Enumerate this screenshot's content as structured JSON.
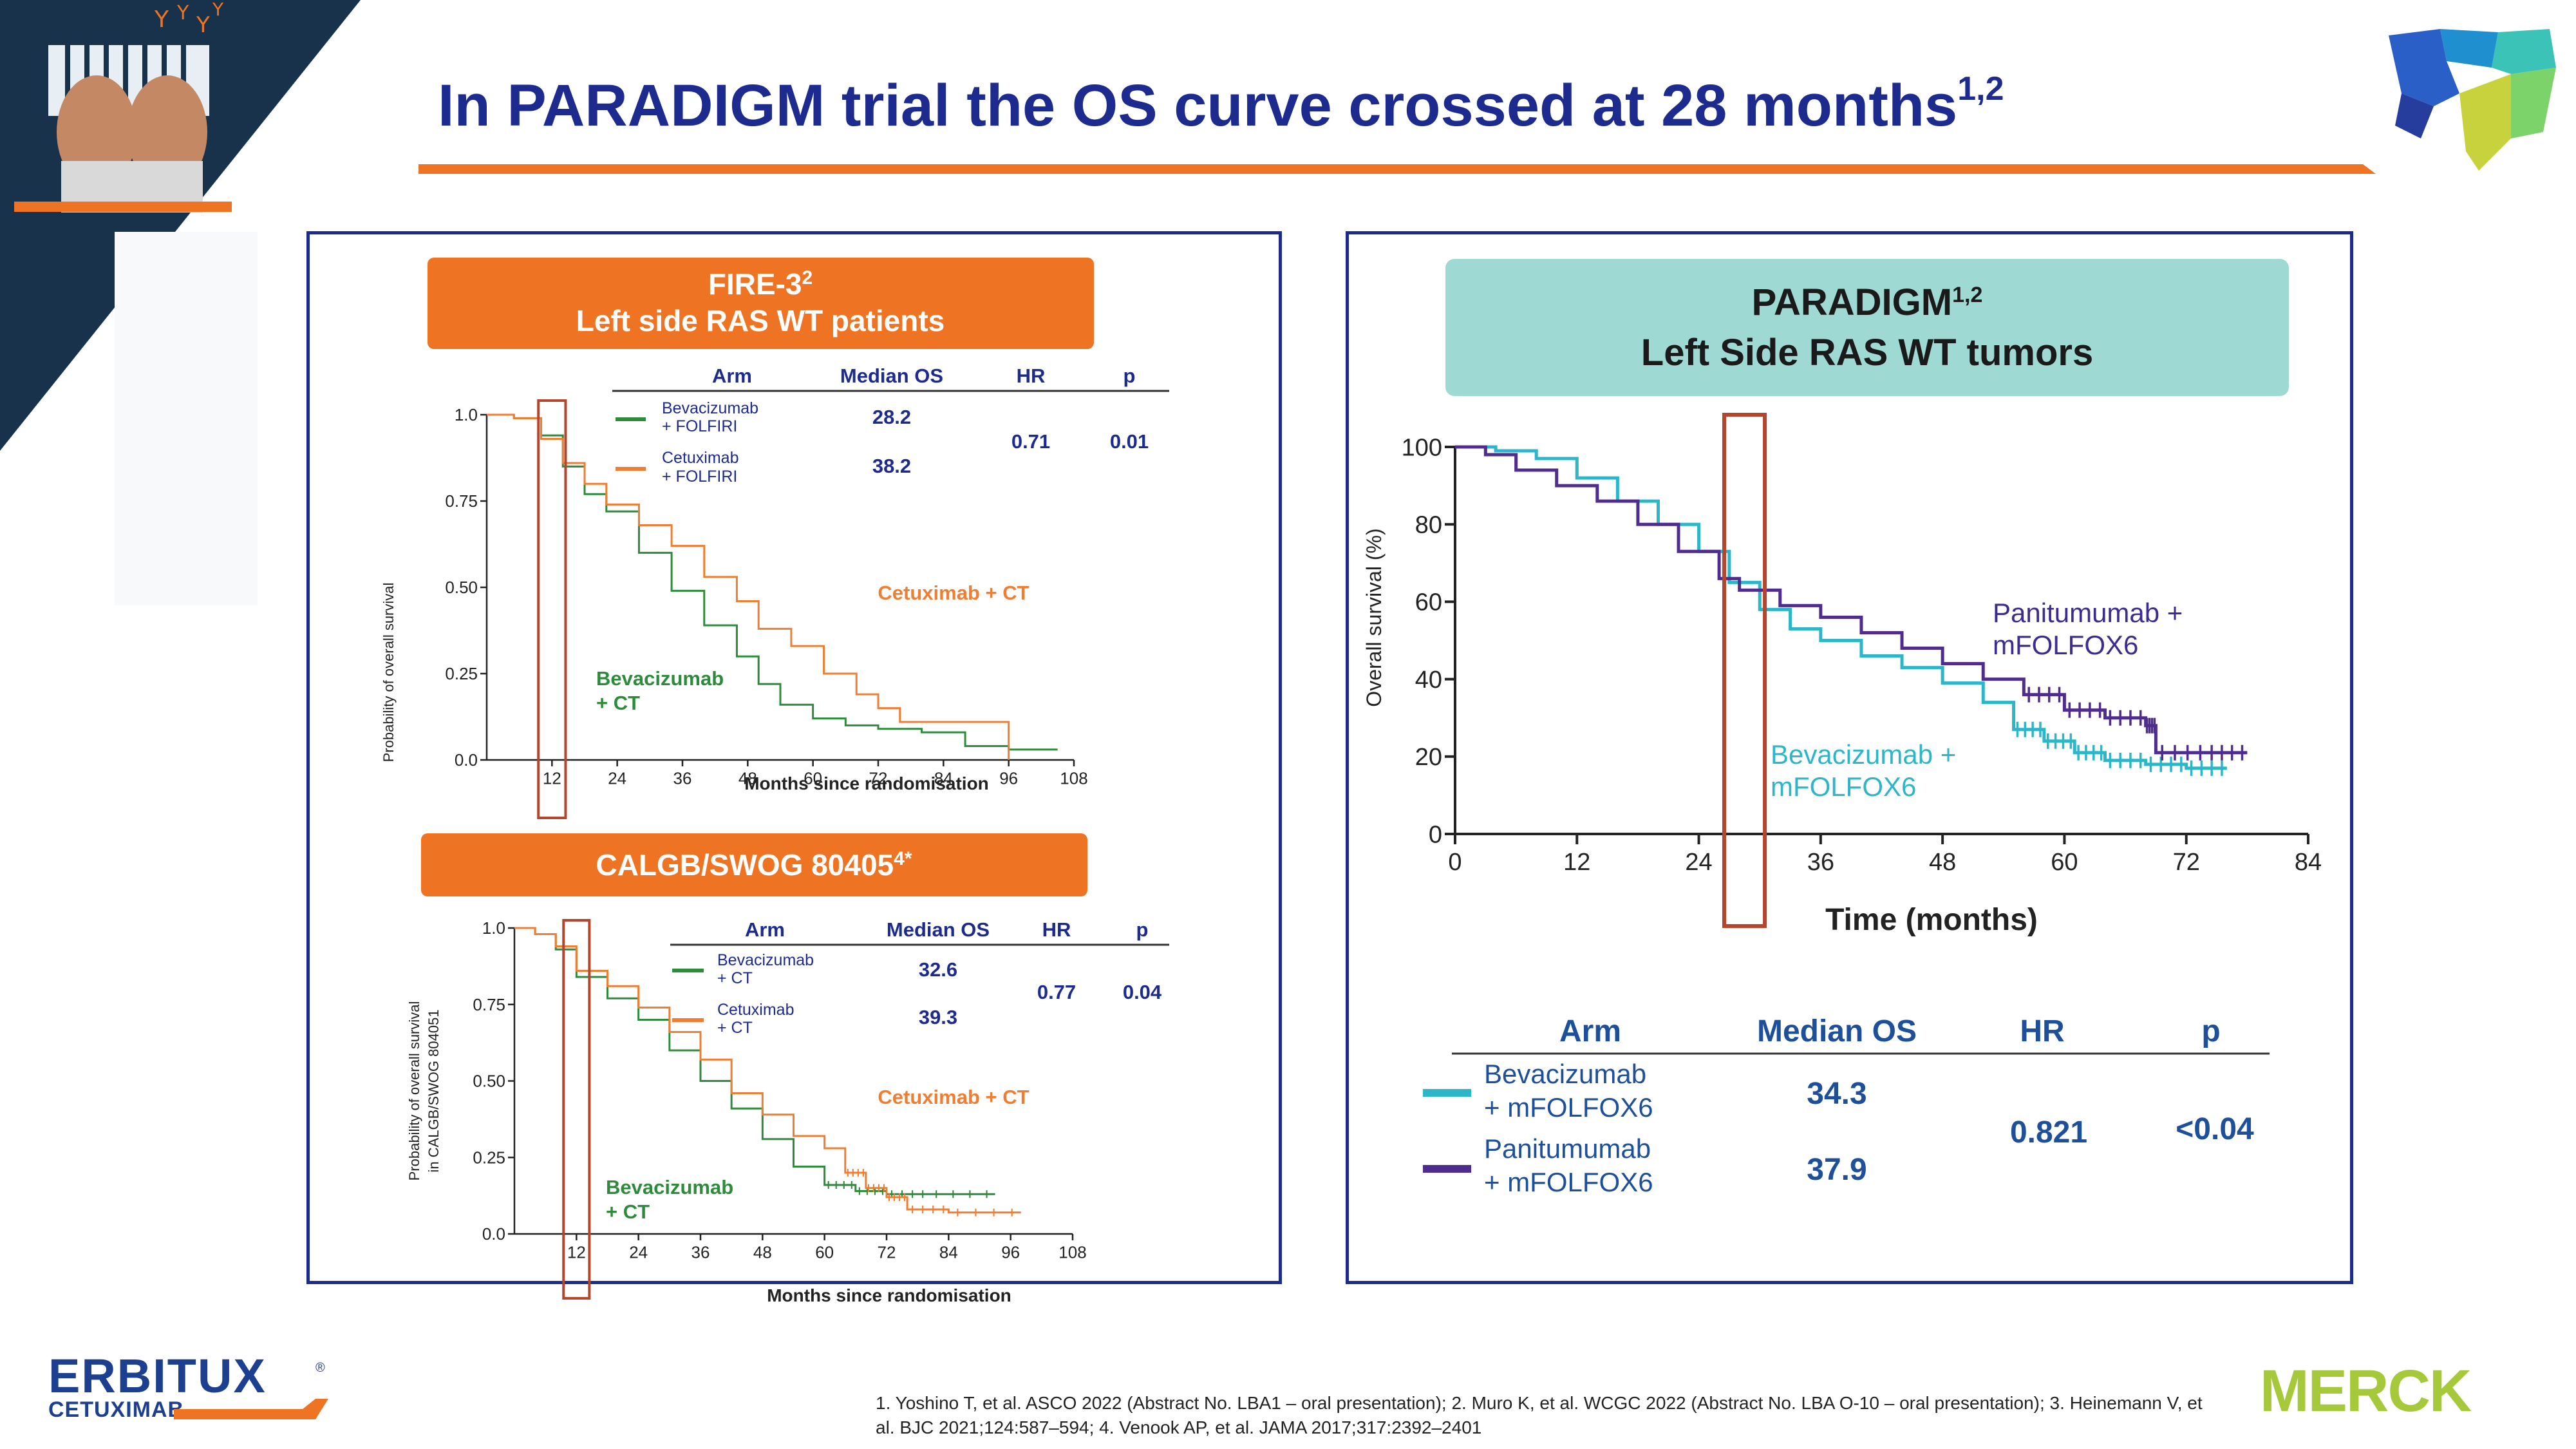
{
  "title": {
    "text": "In PARADIGM trial the OS curve crossed at 28 months",
    "sup": "1,2"
  },
  "colors": {
    "navy": "#1d2b8f",
    "orange": "#ee7423",
    "teal": "#2db6c8",
    "purple": "#4f2d8f",
    "green": "#2e8b3c",
    "curve_orange": "#ef7d32",
    "header_teal": "#9fd9d3",
    "box_red": "#b5462e",
    "merck_green": "#a5c93a"
  },
  "references": "1. Yoshino T, et al. ASCO 2022 (Abstract No. LBA1 – oral presentation); 2. Muro K, et al. WCGC 2022 (Abstract No. LBA O-10 – oral presentation); 3. Heinemann V, et al. BJC 2021;124:587–594; 4. Venook AP, et al. JAMA 2017;317:2392–2401",
  "logos": {
    "erbitux": "ERBITUX",
    "erbitux_registered": "®",
    "cetuximab": "CETUXIMAB",
    "merck": "MERCK"
  },
  "fire3": {
    "header_line1": "FIRE-3",
    "header_sup": "2",
    "header_line2": "Left side RAS WT patients",
    "table_headers": [
      "Arm",
      "Median OS",
      "HR",
      "p"
    ],
    "arms": [
      {
        "line1": "Bevacizumab",
        "line2": "+ FOLFIRI",
        "median_os": "28.2"
      },
      {
        "line1": "Cetuximab",
        "line2": "+ FOLFIRI",
        "median_os": "38.2"
      }
    ],
    "hr": "0.71",
    "p": "0.01",
    "ylabel": "Probability of overall survival",
    "xlabel": "Months since randomisation",
    "curve_label_cet": "Cetuximab + CT",
    "curve_label_bev_1": "Bevacizumab",
    "curve_label_bev_2": "+ CT"
  },
  "calgb": {
    "header": "CALGB/SWOG 80405",
    "header_sup": "4*",
    "table_headers": [
      "Arm",
      "Median OS",
      "HR",
      "p"
    ],
    "arms": [
      {
        "line1": "Bevacizumab",
        "line2": "+ CT",
        "median_os": "32.6"
      },
      {
        "line1": "Cetuximab",
        "line2": "+ CT",
        "median_os": "39.3"
      }
    ],
    "hr": "0.77",
    "p": "0.04",
    "ylabel_1": "Probability of overall survival",
    "ylabel_2": "in CALGB/SWOG 804051",
    "xlabel": "Months since randomisation",
    "curve_label_cet": "Cetuximab + CT",
    "curve_label_bev_1": "Bevacizumab",
    "curve_label_bev_2": "+ CT"
  },
  "paradigm": {
    "header_line1": "PARADIGM",
    "header_sup": "1,2",
    "header_line2": "Left Side RAS WT tumors",
    "ylabel": "Overall survival (%)",
    "xlabel": "Time (months)",
    "label_pan_1": "Panitumumab +",
    "label_pan_2": "mFOLFOX6",
    "label_bev_1": "Bevacizumab +",
    "label_bev_2": "mFOLFOX6",
    "table_headers": [
      "Arm",
      "Median OS",
      "HR",
      "p"
    ],
    "arms": [
      {
        "line1": "Bevacizumab",
        "line2": "+ mFOLFOX6",
        "median_os": "34.3"
      },
      {
        "line1": "Panitumumab",
        "line2": "+ mFOLFOX6",
        "median_os": "37.9"
      }
    ],
    "hr": "0.821",
    "p": "<0.04"
  },
  "chart_data": [
    {
      "type": "line",
      "xlim": [
        0,
        108
      ],
      "ylim": [
        0,
        1.0
      ],
      "xticks": [
        12,
        24,
        36,
        48,
        60,
        72,
        84,
        96,
        108
      ],
      "yticks": [
        0.0,
        0.25,
        0.5,
        0.75,
        1.0
      ],
      "ytick_labels": [
        "0.0",
        "0.25",
        "0.50",
        "0.75",
        "1.0"
      ],
      "highlight_x": 12,
      "series": [
        {
          "name": "Bevacizumab + FOLFIRI",
          "color": "#2e8b3c",
          "points": [
            [
              0,
              1.0
            ],
            [
              5,
              0.99
            ],
            [
              10,
              0.94
            ],
            [
              14,
              0.85
            ],
            [
              18,
              0.77
            ],
            [
              22,
              0.72
            ],
            [
              28,
              0.6
            ],
            [
              34,
              0.49
            ],
            [
              40,
              0.39
            ],
            [
              46,
              0.3
            ],
            [
              50,
              0.22
            ],
            [
              54,
              0.16
            ],
            [
              60,
              0.12
            ],
            [
              66,
              0.1
            ],
            [
              72,
              0.09
            ],
            [
              80,
              0.08
            ],
            [
              88,
              0.04
            ],
            [
              96,
              0.03
            ],
            [
              105,
              0.03
            ]
          ]
        },
        {
          "name": "Cetuximab + FOLFIRI",
          "color": "#ef7d32",
          "points": [
            [
              0,
              1.0
            ],
            [
              5,
              0.99
            ],
            [
              10,
              0.93
            ],
            [
              14,
              0.86
            ],
            [
              18,
              0.8
            ],
            [
              22,
              0.74
            ],
            [
              28,
              0.68
            ],
            [
              34,
              0.62
            ],
            [
              40,
              0.53
            ],
            [
              46,
              0.46
            ],
            [
              50,
              0.38
            ],
            [
              56,
              0.33
            ],
            [
              62,
              0.25
            ],
            [
              68,
              0.19
            ],
            [
              72,
              0.15
            ],
            [
              76,
              0.11
            ],
            [
              96,
              0.11
            ],
            [
              96,
              0.0
            ]
          ]
        }
      ]
    },
    {
      "type": "line",
      "xlim": [
        0,
        108
      ],
      "ylim": [
        0,
        1.0
      ],
      "xticks": [
        12,
        24,
        36,
        48,
        60,
        72,
        84,
        96,
        108
      ],
      "yticks": [
        0.0,
        0.25,
        0.5,
        0.75,
        1.0
      ],
      "ytick_labels": [
        "0.0",
        "0.25",
        "0.50",
        "0.75",
        "1.0"
      ],
      "highlight_x": 12,
      "series": [
        {
          "name": "Bevacizumab + CT",
          "color": "#2e8b3c",
          "points": [
            [
              0,
              1.0
            ],
            [
              4,
              0.98
            ],
            [
              8,
              0.93
            ],
            [
              12,
              0.84
            ],
            [
              18,
              0.77
            ],
            [
              24,
              0.7
            ],
            [
              30,
              0.6
            ],
            [
              36,
              0.5
            ],
            [
              42,
              0.41
            ],
            [
              48,
              0.31
            ],
            [
              54,
              0.22
            ],
            [
              60,
              0.16
            ],
            [
              66,
              0.14
            ],
            [
              72,
              0.13
            ],
            [
              80,
              0.13
            ],
            [
              93,
              0.13
            ]
          ]
        },
        {
          "name": "Cetuximab + CT",
          "color": "#ef7d32",
          "points": [
            [
              0,
              1.0
            ],
            [
              4,
              0.98
            ],
            [
              8,
              0.94
            ],
            [
              12,
              0.86
            ],
            [
              18,
              0.81
            ],
            [
              24,
              0.74
            ],
            [
              30,
              0.66
            ],
            [
              36,
              0.57
            ],
            [
              42,
              0.46
            ],
            [
              48,
              0.39
            ],
            [
              54,
              0.32
            ],
            [
              60,
              0.28
            ],
            [
              64,
              0.2
            ],
            [
              68,
              0.15
            ],
            [
              72,
              0.12
            ],
            [
              76,
              0.08
            ],
            [
              84,
              0.07
            ],
            [
              98,
              0.07
            ]
          ]
        }
      ]
    },
    {
      "type": "line",
      "xlim": [
        0,
        84
      ],
      "ylim": [
        0,
        100
      ],
      "xticks": [
        0,
        12,
        24,
        36,
        48,
        60,
        72,
        84
      ],
      "yticks": [
        0,
        20,
        40,
        60,
        80,
        100
      ],
      "highlight_x": [
        26.5,
        30.5
      ],
      "series": [
        {
          "name": "Bevacizumab + mFOLFOX6",
          "color": "#2db6c8",
          "points": [
            [
              0,
              100
            ],
            [
              4,
              99
            ],
            [
              8,
              97
            ],
            [
              12,
              92
            ],
            [
              16,
              86
            ],
            [
              20,
              80
            ],
            [
              24,
              73
            ],
            [
              27,
              65
            ],
            [
              30,
              58
            ],
            [
              33,
              53
            ],
            [
              36,
              50
            ],
            [
              40,
              46
            ],
            [
              44,
              43
            ],
            [
              48,
              39
            ],
            [
              52,
              34
            ],
            [
              55,
              27
            ],
            [
              58,
              24
            ],
            [
              61,
              21
            ],
            [
              64,
              19
            ],
            [
              68,
              18
            ],
            [
              72,
              17
            ],
            [
              76,
              17
            ]
          ]
        },
        {
          "name": "Panitumumab + mFOLFOX6",
          "color": "#4f2d8f",
          "points": [
            [
              0,
              100
            ],
            [
              3,
              98
            ],
            [
              6,
              94
            ],
            [
              10,
              90
            ],
            [
              14,
              86
            ],
            [
              18,
              80
            ],
            [
              22,
              73
            ],
            [
              26,
              66
            ],
            [
              28,
              63
            ],
            [
              32,
              59
            ],
            [
              36,
              56
            ],
            [
              40,
              52
            ],
            [
              44,
              48
            ],
            [
              48,
              44
            ],
            [
              52,
              40
            ],
            [
              56,
              36
            ],
            [
              60,
              32
            ],
            [
              64,
              30
            ],
            [
              68,
              28
            ],
            [
              69,
              21
            ],
            [
              74,
              21
            ],
            [
              78,
              21
            ]
          ]
        }
      ]
    }
  ]
}
